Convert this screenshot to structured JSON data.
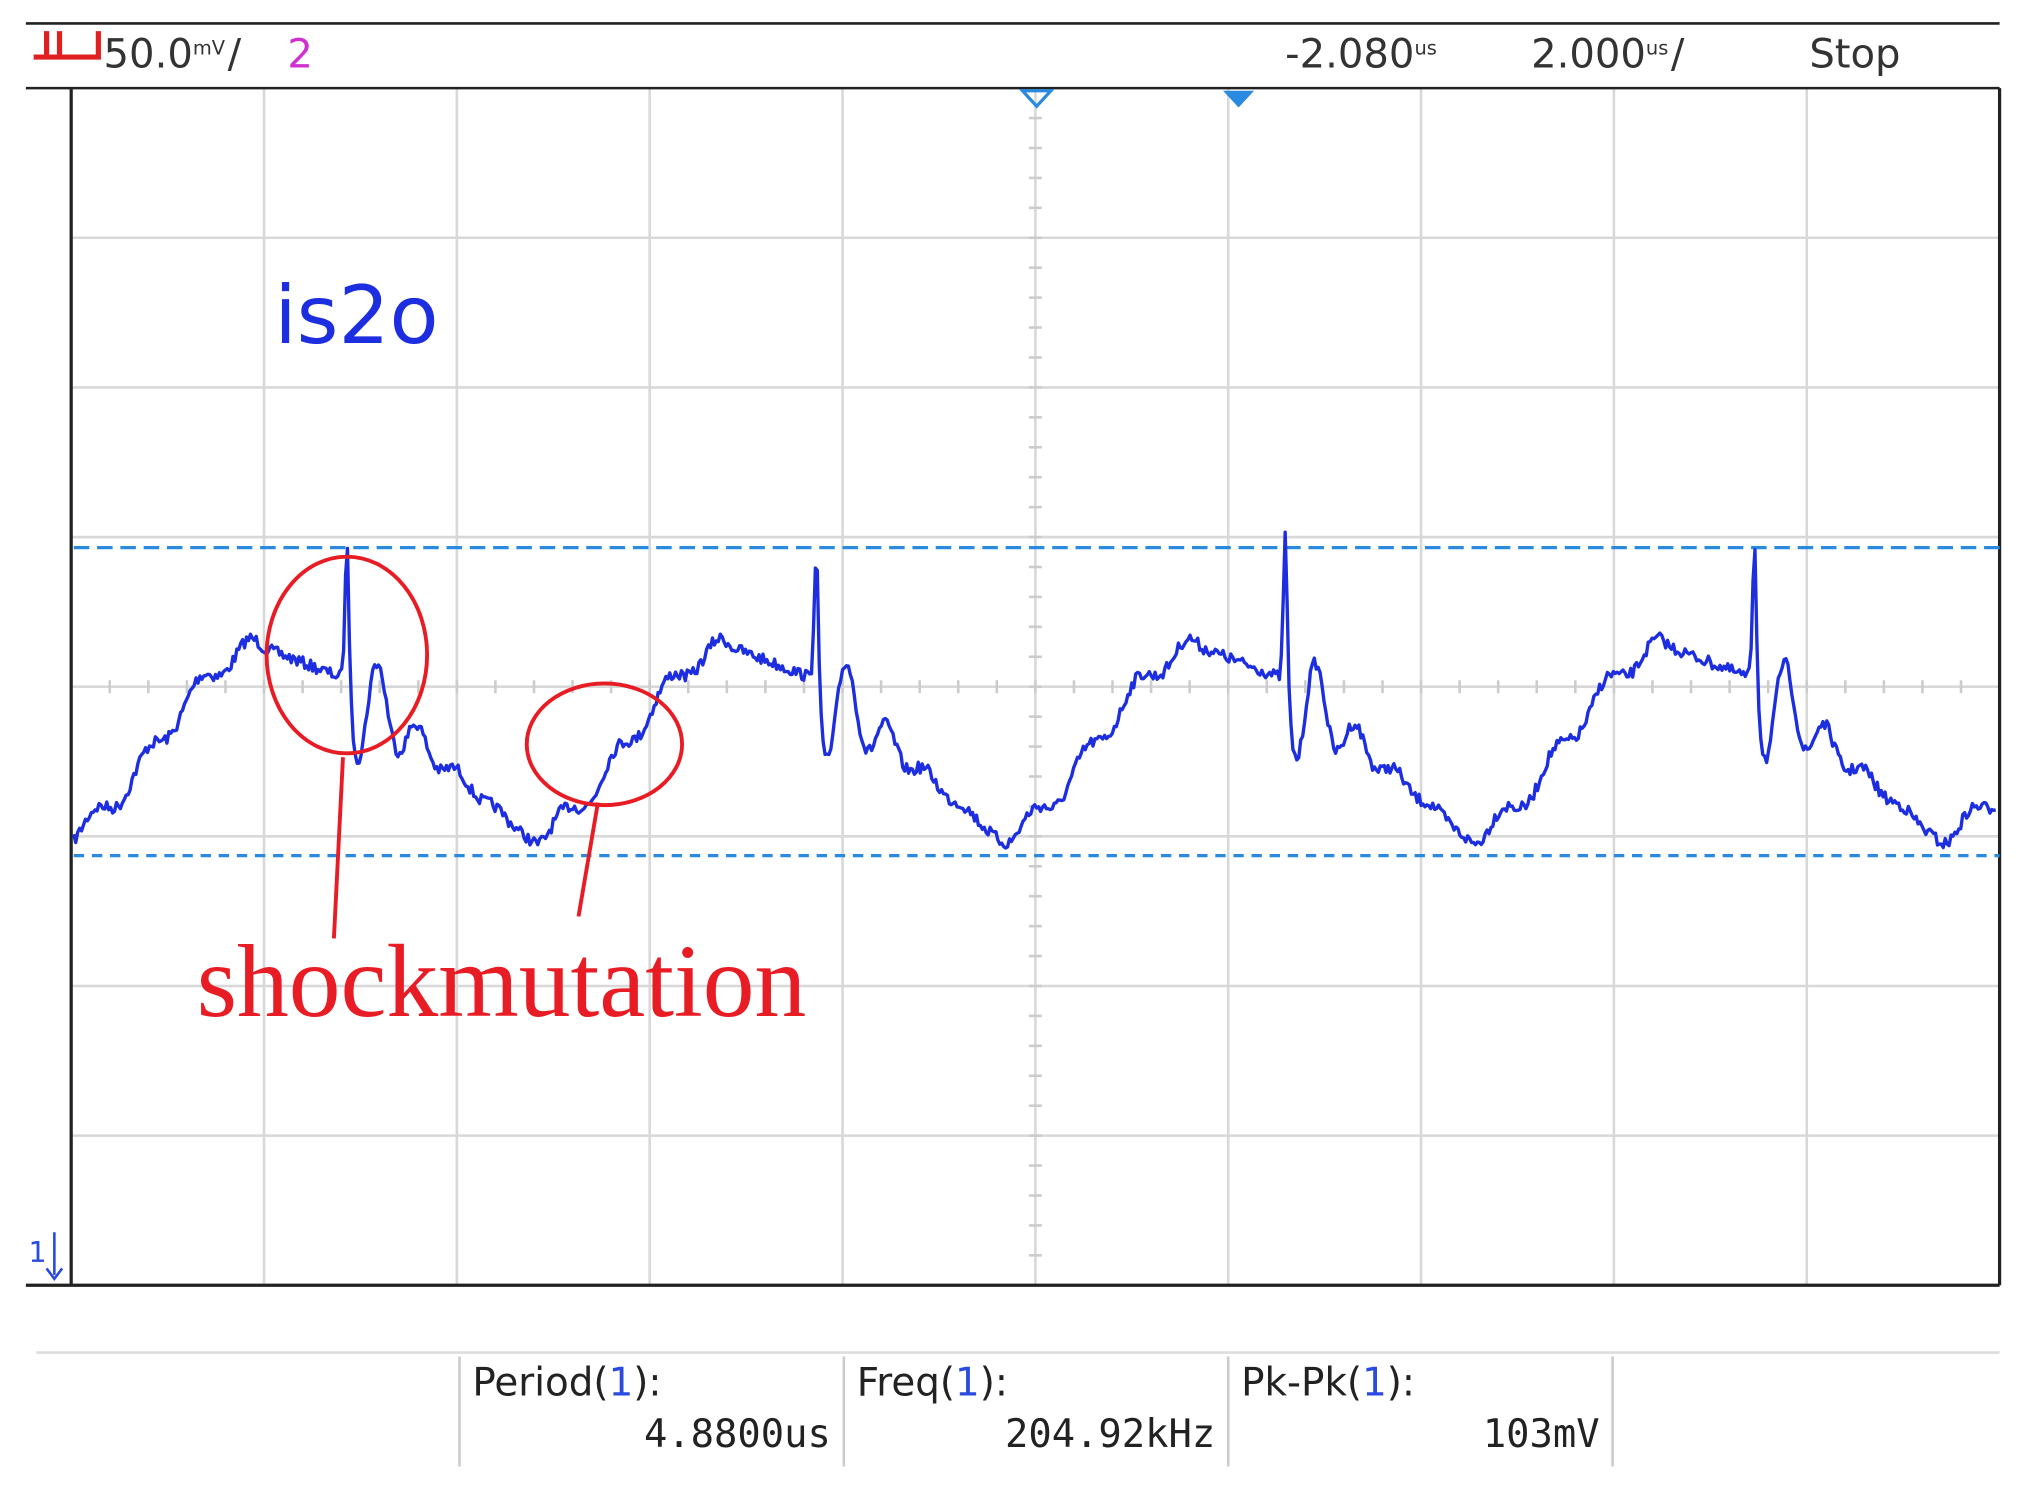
{
  "header": {
    "ch1_scale": "50.0",
    "ch1_unit": "mV",
    "ch1_suffix": "/",
    "ch2": "2",
    "delay": "-2.080",
    "delay_unit": "us",
    "timebase": "2.000",
    "timebase_unit": "us",
    "timebase_suffix": "/",
    "status": "Stop"
  },
  "trace_label": "is2o",
  "annotation": "shockmutation",
  "measurements": [
    {
      "name": "Period(",
      "channel": "1",
      "close": "):",
      "value": "4.8800us"
    },
    {
      "name": "Freq(",
      "channel": "1",
      "close": "):",
      "value": "204.92kHz"
    },
    {
      "name": "Pk-Pk(",
      "channel": "1",
      "close": "):",
      "value": "103mV"
    }
  ]
}
